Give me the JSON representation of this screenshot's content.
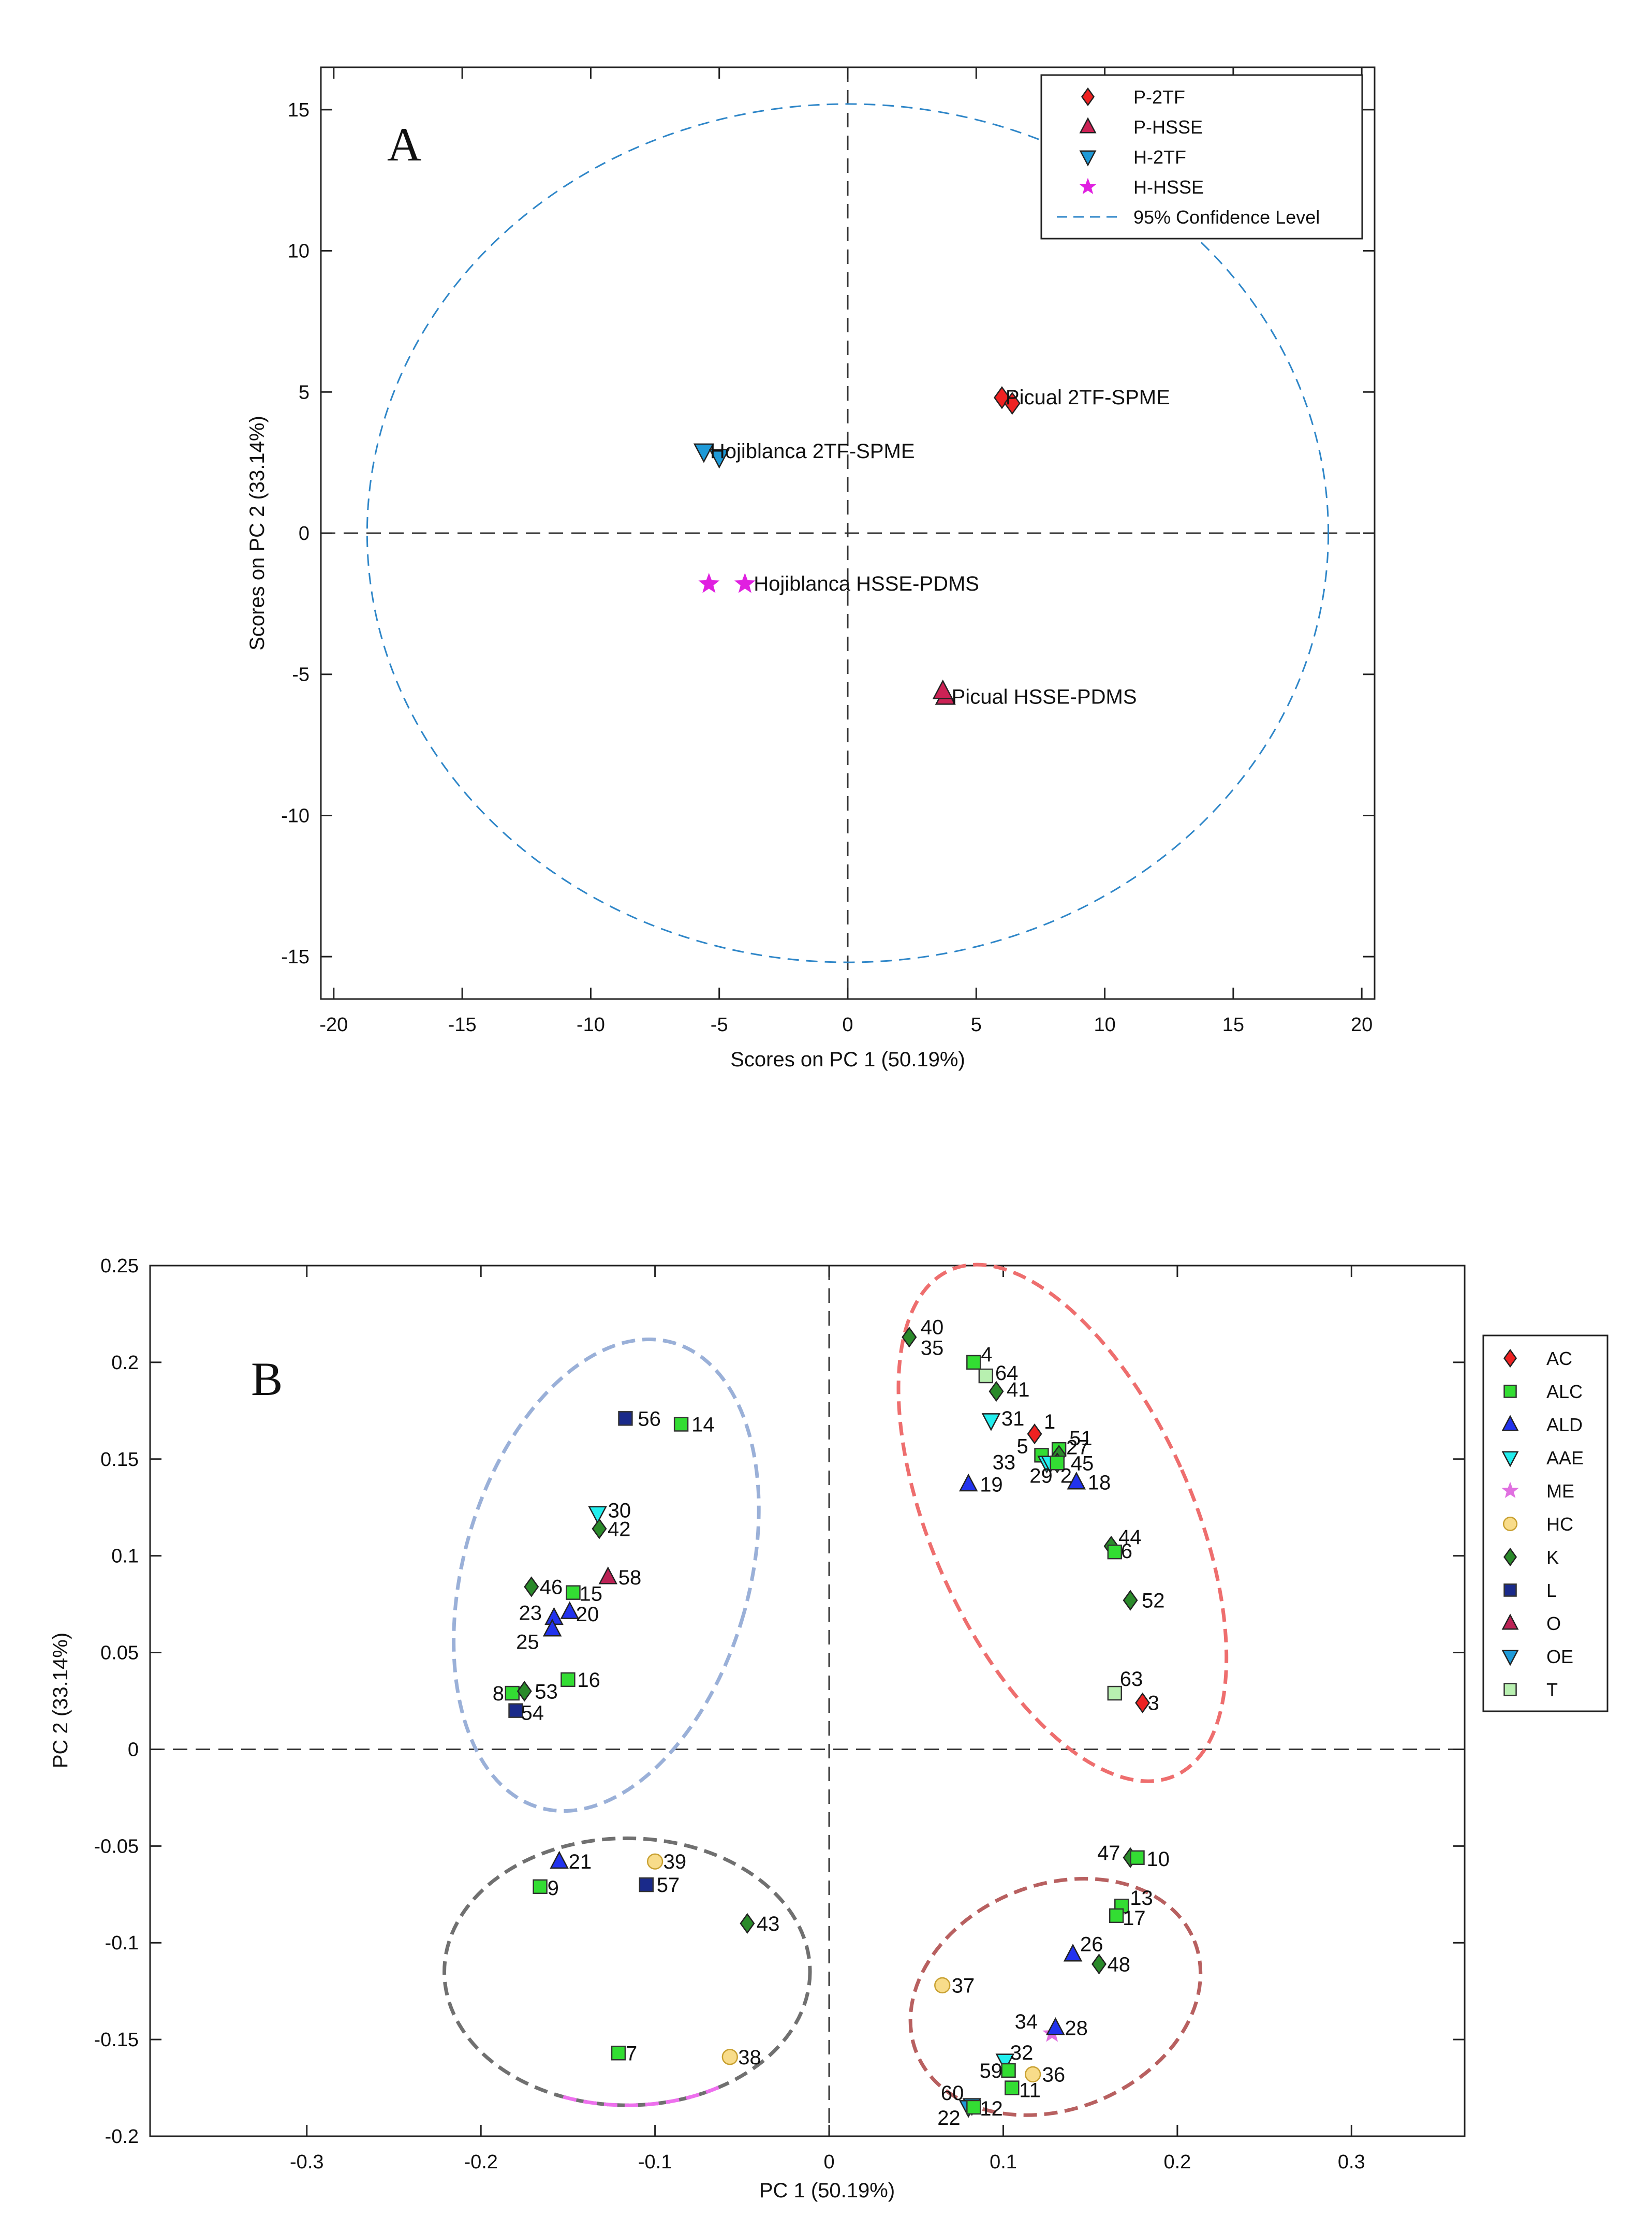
{
  "chart_data": [
    {
      "id": "A",
      "type": "scatter",
      "panel_label": "A",
      "xlabel": "Scores on PC 1 (50.19%)",
      "ylabel": "Scores on PC 2 (33.14%)",
      "xlim": [
        -20.5,
        20.5
      ],
      "ylim": [
        -16.5,
        16.5
      ],
      "xticks": [
        "-20",
        "-15",
        "-10",
        "-5",
        "0",
        "5",
        "10",
        "15",
        "20"
      ],
      "yticks": [
        "15",
        "10",
        "5",
        "0",
        "-5",
        "-10",
        "-15"
      ],
      "xtick_values": [
        -20,
        -15,
        -10,
        -5,
        0,
        5,
        10,
        15,
        20
      ],
      "ytick_values": [
        15,
        10,
        5,
        0,
        -5,
        -10,
        -15
      ],
      "legend": {
        "position": "top-right",
        "entries": [
          {
            "label": "P-2TF",
            "marker": "diamond",
            "color": "#ee2222"
          },
          {
            "label": "P-HSSE",
            "marker": "triangle-up",
            "color": "#cc2255"
          },
          {
            "label": "H-2TF",
            "marker": "triangle-down",
            "color": "#1e9ad8"
          },
          {
            "label": "H-HSSE",
            "marker": "star",
            "color": "#e020e0"
          },
          {
            "label": "95% Confidence Level",
            "marker": "dashed-line",
            "color": "#2e86c8"
          }
        ]
      },
      "ellipse": {
        "cx": 0,
        "cy": 0,
        "rx": 18.7,
        "ry": 15.2,
        "color": "#2e86c8"
      },
      "series": [
        {
          "name": "P-2TF",
          "marker": "diamond",
          "color": "#ee2222",
          "points": [
            [
              6.0,
              4.8
            ],
            [
              6.4,
              4.6
            ]
          ]
        },
        {
          "name": "P-HSSE",
          "marker": "triangle-up",
          "color": "#cc2255",
          "points": [
            [
              3.8,
              -5.8
            ],
            [
              3.7,
              -5.6
            ]
          ]
        },
        {
          "name": "H-2TF",
          "marker": "triangle-down",
          "color": "#1e9ad8",
          "points": [
            [
              -5.6,
              2.9
            ],
            [
              -5.0,
              2.7
            ]
          ]
        },
        {
          "name": "H-HSSE",
          "marker": "star",
          "color": "#e020e0",
          "points": [
            [
              -5.4,
              -1.8
            ],
            [
              -4.0,
              -1.8
            ]
          ]
        }
      ],
      "annotations": [
        {
          "text": "Picual 2TF-SPME",
          "x": 6.1,
          "y": 4.8
        },
        {
          "text": "Hojiblanca 2TF-SPME",
          "x": -5.4,
          "y": 2.9
        },
        {
          "text": "Hojiblanca HSSE-PDMS",
          "x": -3.7,
          "y": -1.8
        },
        {
          "text": "Picual HSSE-PDMS",
          "x": 4.0,
          "y": -5.8
        }
      ]
    },
    {
      "id": "B",
      "type": "scatter",
      "panel_label": "B",
      "xlabel": "PC 1 (50.19%)",
      "ylabel": "PC 2 (33.14%)",
      "xlim": [
        -0.39,
        0.365
      ],
      "ylim": [
        -0.2,
        0.25
      ],
      "xticks": [
        "-0.3",
        "-0.2",
        "-0.1",
        "0",
        "0.1",
        "0.2",
        "0.3"
      ],
      "yticks": [
        "0.25",
        "0.2",
        "0.15",
        "0.1",
        "0.05",
        "0",
        "-0.05",
        "-0.1",
        "-0.15",
        "-0.2"
      ],
      "xtick_values": [
        -0.3,
        -0.2,
        -0.1,
        0,
        0.1,
        0.2,
        0.3
      ],
      "ytick_values": [
        0.25,
        0.2,
        0.15,
        0.1,
        0.05,
        0,
        -0.05,
        -0.1,
        -0.15,
        -0.2
      ],
      "legend": {
        "position": "right",
        "entries": [
          {
            "label": "AC",
            "marker": "diamond",
            "color": "#ee2222"
          },
          {
            "label": "ALC",
            "marker": "square",
            "color": "#33dd33"
          },
          {
            "label": "ALD",
            "marker": "triangle-up",
            "color": "#2233ee"
          },
          {
            "label": "AAE",
            "marker": "triangle-down",
            "color": "#22eeee"
          },
          {
            "label": "ME",
            "marker": "star",
            "color": "#e070e0"
          },
          {
            "label": "HC",
            "marker": "circle",
            "color": "#f8dc8a"
          },
          {
            "label": "K",
            "marker": "diamond",
            "color": "#2a8a2a"
          },
          {
            "label": "L",
            "marker": "square",
            "color": "#1a2a8a"
          },
          {
            "label": "O",
            "marker": "triangle-up",
            "color": "#bb2255"
          },
          {
            "label": "OE",
            "marker": "triangle-down",
            "color": "#1e9ad8"
          },
          {
            "label": "T",
            "marker": "square",
            "color": "#b8f0b0"
          }
        ]
      },
      "ellipses": [
        {
          "name": "upper-left",
          "cx": -0.128,
          "cy": 0.09,
          "rx": 0.082,
          "ry": 0.125,
          "rotate": 16,
          "color": "#9ab0d8"
        },
        {
          "name": "upper-right",
          "cx": 0.134,
          "cy": 0.117,
          "rx": 0.075,
          "ry": 0.143,
          "rotate": -24,
          "color": "#ee6e6e"
        },
        {
          "name": "lower-left",
          "cx": -0.116,
          "cy": -0.115,
          "rx": 0.105,
          "ry": 0.069,
          "rotate": 0,
          "color": "#707070",
          "accent_color": "#ee70ee"
        },
        {
          "name": "lower-right",
          "cx": 0.13,
          "cy": -0.128,
          "rx": 0.086,
          "ry": 0.058,
          "rotate": -22,
          "color": "#b86060"
        }
      ],
      "points": [
        {
          "label": "40",
          "group": "K",
          "x": 0.046,
          "y": 0.213
        },
        {
          "label": "35",
          "group": "K",
          "x": 0.046,
          "y": 0.213
        },
        {
          "label": "4",
          "group": "ALC",
          "x": 0.083,
          "y": 0.2
        },
        {
          "label": "64",
          "group": "T",
          "x": 0.09,
          "y": 0.193
        },
        {
          "label": "41",
          "group": "K",
          "x": 0.096,
          "y": 0.185
        },
        {
          "label": "31",
          "group": "AAE",
          "x": 0.093,
          "y": 0.17
        },
        {
          "label": "1",
          "group": "AC",
          "x": 0.118,
          "y": 0.163
        },
        {
          "label": "51",
          "group": "ALC",
          "x": 0.132,
          "y": 0.155
        },
        {
          "label": "5",
          "group": "ALC",
          "x": 0.122,
          "y": 0.152
        },
        {
          "label": "27",
          "group": "K",
          "x": 0.132,
          "y": 0.152
        },
        {
          "label": "45",
          "group": "K",
          "x": 0.131,
          "y": 0.148
        },
        {
          "label": "33",
          "group": "AAE",
          "x": 0.125,
          "y": 0.148
        },
        {
          "label": "29",
          "group": "AAE",
          "x": 0.127,
          "y": 0.148
        },
        {
          "label": "2",
          "group": "ALC",
          "x": 0.131,
          "y": 0.148
        },
        {
          "label": "19",
          "group": "ALD",
          "x": 0.08,
          "y": 0.137
        },
        {
          "label": "18",
          "group": "ALD",
          "x": 0.142,
          "y": 0.138
        },
        {
          "label": "44",
          "group": "K",
          "x": 0.162,
          "y": 0.105
        },
        {
          "label": "6",
          "group": "ALC",
          "x": 0.164,
          "y": 0.102
        },
        {
          "label": "52",
          "group": "K",
          "x": 0.173,
          "y": 0.077
        },
        {
          "label": "63",
          "group": "T",
          "x": 0.164,
          "y": 0.029
        },
        {
          "label": "3",
          "group": "AC",
          "x": 0.18,
          "y": 0.024
        },
        {
          "label": "56",
          "group": "L",
          "x": -0.117,
          "y": 0.171
        },
        {
          "label": "14",
          "group": "ALC",
          "x": -0.085,
          "y": 0.168
        },
        {
          "label": "30",
          "group": "AAE",
          "x": -0.133,
          "y": 0.122
        },
        {
          "label": "42",
          "group": "K",
          "x": -0.132,
          "y": 0.114
        },
        {
          "label": "58",
          "group": "O",
          "x": -0.127,
          "y": 0.089
        },
        {
          "label": "46",
          "group": "K",
          "x": -0.171,
          "y": 0.084
        },
        {
          "label": "15",
          "group": "ALC",
          "x": -0.147,
          "y": 0.081
        },
        {
          "label": "23",
          "group": "ALD",
          "x": -0.158,
          "y": 0.068
        },
        {
          "label": "20",
          "group": "ALD",
          "x": -0.149,
          "y": 0.071
        },
        {
          "label": "25",
          "group": "ALD",
          "x": -0.159,
          "y": 0.062
        },
        {
          "label": "16",
          "group": "ALC",
          "x": -0.15,
          "y": 0.036
        },
        {
          "label": "8",
          "group": "ALC",
          "x": -0.182,
          "y": 0.029
        },
        {
          "label": "53",
          "group": "K",
          "x": -0.175,
          "y": 0.03
        },
        {
          "label": "54",
          "group": "L",
          "x": -0.18,
          "y": 0.02
        },
        {
          "label": "21",
          "group": "ALD",
          "x": -0.155,
          "y": -0.058
        },
        {
          "label": "39",
          "group": "HC",
          "x": -0.1,
          "y": -0.058
        },
        {
          "label": "9",
          "group": "ALC",
          "x": -0.166,
          "y": -0.071
        },
        {
          "label": "57",
          "group": "L",
          "x": -0.105,
          "y": -0.07
        },
        {
          "label": "43",
          "group": "K",
          "x": -0.047,
          "y": -0.09
        },
        {
          "label": "7",
          "group": "ALC",
          "x": -0.121,
          "y": -0.157
        },
        {
          "label": "38",
          "group": "HC",
          "x": -0.057,
          "y": -0.159
        },
        {
          "label": "47",
          "group": "K",
          "x": 0.173,
          "y": -0.056
        },
        {
          "label": "10",
          "group": "ALC",
          "x": 0.177,
          "y": -0.056
        },
        {
          "label": "13",
          "group": "ALC",
          "x": 0.168,
          "y": -0.081
        },
        {
          "label": "17",
          "group": "ALC",
          "x": 0.165,
          "y": -0.086
        },
        {
          "label": "26",
          "group": "ALD",
          "x": 0.14,
          "y": -0.106
        },
        {
          "label": "48",
          "group": "K",
          "x": 0.155,
          "y": -0.111
        },
        {
          "label": "37",
          "group": "HC",
          "x": 0.065,
          "y": -0.122
        },
        {
          "label": "34",
          "group": "ME",
          "x": 0.128,
          "y": -0.147
        },
        {
          "label": "28",
          "group": "ALD",
          "x": 0.13,
          "y": -0.144
        },
        {
          "label": "32",
          "group": "AAE",
          "x": 0.101,
          "y": -0.161
        },
        {
          "label": "59",
          "group": "ALC",
          "x": 0.103,
          "y": -0.166
        },
        {
          "label": "36",
          "group": "HC",
          "x": 0.117,
          "y": -0.168
        },
        {
          "label": "11",
          "group": "ALC",
          "x": 0.105,
          "y": -0.175
        },
        {
          "label": "60",
          "group": "OE",
          "x": 0.082,
          "y": -0.184
        },
        {
          "label": "22",
          "group": "OE",
          "x": 0.08,
          "y": -0.185
        },
        {
          "label": "12",
          "group": "ALC",
          "x": 0.083,
          "y": -0.185
        }
      ]
    }
  ]
}
